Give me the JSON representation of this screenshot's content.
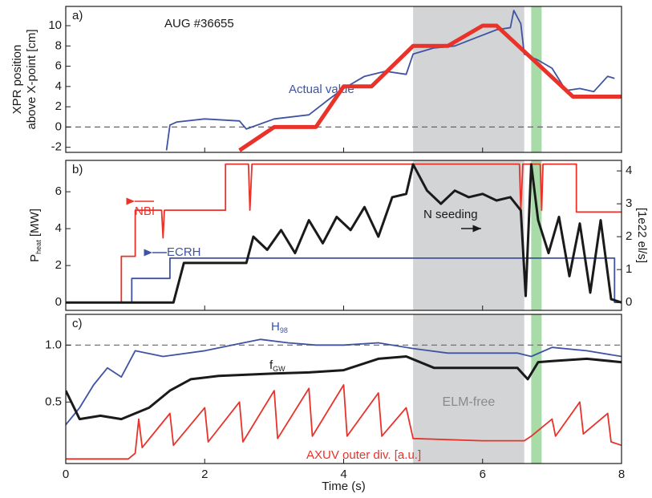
{
  "chart_data": [
    {
      "type": "line",
      "title": "a)",
      "annotations": [
        "AUG #36655"
      ],
      "ylabel": [
        "XPR position",
        "above X-point [cm]"
      ],
      "xlim": [
        0,
        8
      ],
      "ylim": [
        -2.5,
        11.9
      ],
      "yticks": [
        -2,
        0,
        2,
        4,
        6,
        8,
        10
      ],
      "hline": 0,
      "series": [
        {
          "name": "Actual value",
          "color": "#3e54a3",
          "x": [
            1.45,
            1.5,
            1.6,
            2.0,
            2.5,
            2.6,
            3.0,
            3.5,
            3.8,
            4.0,
            4.3,
            4.6,
            4.9,
            5.0,
            5.3,
            5.6,
            5.9,
            6.2,
            6.4,
            6.45,
            6.55,
            6.6,
            6.8,
            7.0,
            7.2,
            7.4,
            7.6,
            7.8,
            7.9
          ],
          "values": [
            -2.3,
            0.2,
            0.5,
            0.8,
            0.6,
            -0.2,
            0.8,
            1.2,
            2.8,
            3.8,
            5.0,
            5.5,
            5.2,
            7.2,
            7.8,
            8.0,
            8.8,
            9.6,
            9.8,
            11.5,
            10.2,
            7.2,
            6.6,
            5.8,
            3.6,
            3.8,
            3.5,
            5.0,
            4.8
          ]
        },
        {
          "color": "#e8322a",
          "x": [
            2.5,
            3.0,
            3.6,
            4.0,
            4.4,
            5.0,
            5.5,
            6.0,
            6.2,
            7.3,
            8.0
          ],
          "values": [
            -2.3,
            0,
            0,
            4,
            4,
            8,
            8,
            10,
            10,
            3,
            3
          ]
        }
      ]
    },
    {
      "type": "line",
      "title": "b)",
      "ylabel": [
        "P",
        "heat",
        " [MW]"
      ],
      "y2label": "[1e22 el/s]",
      "xlim": [
        0,
        8
      ],
      "ylim": [
        -0.43,
        7.7
      ],
      "yticks": [
        0,
        2,
        4,
        6
      ],
      "y2lim": [
        -0.24,
        4.32
      ],
      "y2ticks": [
        0,
        1,
        2,
        3,
        4
      ],
      "series": [
        {
          "name": "NBI",
          "color": "#e8322a",
          "x": [
            0,
            0.8,
            0.8,
            1.0,
            1.0,
            1.38,
            1.4,
            1.42,
            2.3,
            2.3,
            2.63,
            2.65,
            2.68,
            6.53,
            6.55,
            6.58,
            6.83,
            6.85,
            6.87,
            7.35,
            7.35,
            8.0
          ],
          "values": [
            0,
            0,
            2.5,
            2.5,
            5,
            5,
            3.5,
            5,
            5,
            7.5,
            7.5,
            5,
            7.5,
            7.5,
            5,
            7.5,
            7.5,
            5,
            7.5,
            7.5,
            4.9,
            4.9
          ]
        },
        {
          "name": "ECRH",
          "color": "#3e54a3",
          "x": [
            0,
            0.95,
            0.95,
            1.5,
            1.5,
            7.9,
            7.9,
            8.0
          ],
          "values": [
            0,
            0,
            1.3,
            1.3,
            2.4,
            2.4,
            0,
            0
          ]
        },
        {
          "name": "N seeding",
          "color": "#1a1a1a",
          "axis": "y2",
          "x": [
            0,
            1.55,
            1.7,
            2.6,
            2.7,
            2.9,
            3.1,
            3.3,
            3.5,
            3.7,
            3.9,
            4.1,
            4.3,
            4.5,
            4.7,
            4.9,
            5.0,
            5.2,
            5.4,
            5.6,
            5.8,
            6.0,
            6.2,
            6.4,
            6.55,
            6.62,
            6.7,
            6.8,
            6.95,
            7.1,
            7.25,
            7.4,
            7.55,
            7.7,
            7.85,
            8.0
          ],
          "values": [
            0,
            0,
            1.2,
            1.2,
            2.0,
            1.6,
            2.2,
            1.5,
            2.5,
            1.8,
            2.6,
            2.2,
            2.9,
            2.0,
            3.2,
            3.3,
            4.2,
            3.4,
            3.0,
            3.4,
            3.2,
            3.3,
            3.1,
            3.2,
            2.8,
            0.2,
            4.2,
            2.5,
            1.5,
            2.6,
            0.8,
            2.4,
            0.3,
            2.5,
            0.1,
            0
          ]
        }
      ]
    },
    {
      "type": "line",
      "title": "c)",
      "xlabel": "Time (s)",
      "xlim": [
        0,
        8
      ],
      "xticks": [
        0,
        2,
        4,
        6,
        8
      ],
      "ylim": [
        -0.04,
        1.27
      ],
      "yticks": [
        0.5,
        {
          "value": 1,
          "label": "1.0"
        }
      ],
      "hline": 1,
      "spans": [
        {
          "x": [
            5.0,
            6.6
          ],
          "color": "#d3d4d6",
          "label": "ELM-free"
        },
        {
          "x": [
            6.7,
            6.85
          ],
          "color": "#a8dba8"
        }
      ],
      "series": [
        {
          "name": [
            "H",
            "98"
          ],
          "color": "#3e54a3",
          "x": [
            0,
            0.2,
            0.4,
            0.6,
            0.8,
            1.0,
            1.4,
            2.0,
            2.4,
            2.8,
            3.2,
            3.6,
            4.0,
            4.5,
            5.0,
            5.5,
            6.0,
            6.5,
            6.7,
            7.0,
            7.5,
            8.0
          ],
          "values": [
            0.3,
            0.45,
            0.65,
            0.8,
            0.72,
            0.95,
            0.9,
            0.95,
            1.0,
            1.05,
            1.02,
            1.0,
            1.0,
            1.02,
            0.97,
            0.93,
            0.93,
            0.93,
            0.9,
            0.98,
            0.95,
            0.9
          ]
        },
        {
          "name": [
            "f",
            "GW"
          ],
          "color": "#1a1a1a",
          "x": [
            0,
            0.2,
            0.5,
            0.8,
            1.0,
            1.2,
            1.5,
            1.8,
            2.2,
            3.0,
            3.5,
            4.0,
            4.5,
            4.9,
            5.3,
            6.0,
            6.5,
            6.65,
            6.8,
            7.0,
            7.5,
            8.0
          ],
          "values": [
            0.6,
            0.35,
            0.38,
            0.35,
            0.4,
            0.45,
            0.6,
            0.7,
            0.73,
            0.75,
            0.76,
            0.78,
            0.88,
            0.9,
            0.8,
            0.8,
            0.8,
            0.7,
            0.85,
            0.86,
            0.88,
            0.85
          ]
        },
        {
          "name": "AXUV outer div. [a.u.]",
          "color": "#e8322a",
          "x": [
            0,
            0.9,
            1.0,
            1.05,
            1.1,
            1.5,
            1.55,
            2.0,
            2.05,
            2.5,
            2.55,
            3.0,
            3.05,
            3.5,
            3.55,
            4.0,
            4.05,
            4.5,
            4.55,
            4.9,
            5.0,
            6.0,
            6.6,
            6.7,
            7.0,
            7.05,
            7.4,
            7.45,
            7.8,
            7.85,
            8.0
          ],
          "values": [
            0,
            0,
            0.05,
            0.35,
            0.1,
            0.4,
            0.12,
            0.45,
            0.15,
            0.5,
            0.15,
            0.6,
            0.18,
            0.62,
            0.2,
            0.65,
            0.2,
            0.58,
            0.2,
            0.45,
            0.18,
            0.16,
            0.16,
            0.2,
            0.35,
            0.2,
            0.5,
            0.22,
            0.4,
            0.15,
            0.12
          ]
        }
      ]
    }
  ]
}
